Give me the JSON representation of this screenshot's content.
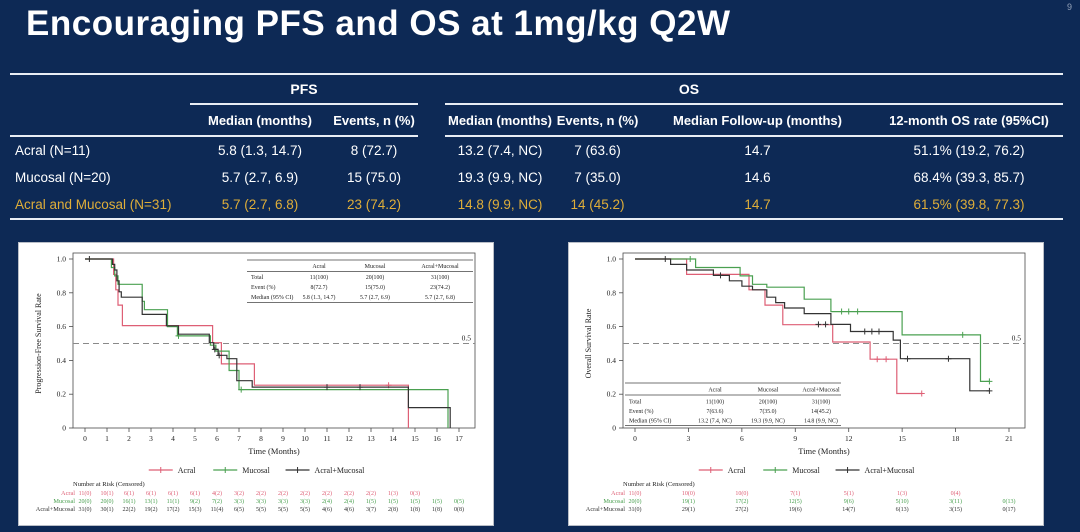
{
  "slide": {
    "page_number": "9",
    "title": "Encouraging PFS and OS at 1mg/kg Q2W"
  },
  "colors": {
    "background": "#0d2955",
    "rule_lines": "#e8edf4",
    "highlight_gold": "#dfae39",
    "series_acral": "#de5f75",
    "series_mucosal": "#4aa050",
    "series_combined": "#333333",
    "reference_line": "#8a8a8a"
  },
  "summary_table": {
    "groups": [
      {
        "label": "PFS",
        "span": 2
      },
      {
        "label": "OS",
        "span": 4
      }
    ],
    "columns": [
      "Median (months)",
      "Events, n (%)",
      "Median (months)",
      "Events, n (%)",
      "Median Follow-up (months)",
      "12-month OS rate (95%CI)"
    ],
    "rows": [
      {
        "label": "Acral (N=11)",
        "highlight": false,
        "values": [
          "5.8 (1.3, 14.7)",
          "8 (72.7)",
          "13.2 (7.4, NC)",
          "7 (63.6)",
          "14.7",
          "51.1% (19.2, 76.2)"
        ]
      },
      {
        "label": "Mucosal (N=20)",
        "highlight": false,
        "values": [
          "5.7 (2.7, 6.9)",
          "15 (75.0)",
          "19.3 (9.9, NC)",
          "7 (35.0)",
          "14.6",
          "68.4% (39.3, 85.7)"
        ]
      },
      {
        "label": "Acral and Mucosal (N=31)",
        "highlight": true,
        "values": [
          "5.7 (2.7, 6.8)",
          "23 (74.2)",
          "14.8 (9.9, NC)",
          "14 (45.2)",
          "14.7",
          "61.5% (39.8, 77.3)"
        ]
      }
    ]
  },
  "chart_data": [
    {
      "type": "line",
      "subtype": "kaplan-meier-step",
      "name": "pfs-km-chart",
      "title": "",
      "ylabel": "Progression-Free Survival Rate",
      "xlabel": "Time (Months)",
      "xlim": [
        0,
        17
      ],
      "ylim": [
        0,
        1.0
      ],
      "xticks": [
        0,
        1,
        2,
        3,
        4,
        5,
        6,
        7,
        8,
        9,
        10,
        11,
        12,
        13,
        14,
        15,
        16,
        17
      ],
      "yticks": [
        0,
        0.2,
        0.4,
        0.6,
        0.8,
        1.0
      ],
      "grid": false,
      "legend_position": "bottom",
      "reference_line": {
        "y": 0.5,
        "label": "0.5"
      },
      "series": [
        {
          "name": "Acral",
          "color": "#de5f75",
          "start": [
            0,
            1.0
          ],
          "drops": [
            [
              1.3,
              0.909
            ],
            [
              1.4,
              0.818
            ],
            [
              1.5,
              0.727
            ],
            [
              1.7,
              0.606
            ],
            [
              5.8,
              0.505
            ],
            [
              6.2,
              0.379
            ],
            [
              7.7,
              0.253
            ],
            [
              14.7,
              0.0
            ]
          ],
          "end_x": null,
          "censors": [
            [
              13.8,
              0.253
            ]
          ]
        },
        {
          "name": "Mucosal",
          "color": "#4aa050",
          "start": [
            0,
            1.0
          ],
          "drops": [
            [
              1.2,
              0.95
            ],
            [
              1.35,
              0.9
            ],
            [
              1.5,
              0.85
            ],
            [
              2.6,
              0.75
            ],
            [
              2.7,
              0.7
            ],
            [
              3.75,
              0.6
            ],
            [
              4.2,
              0.545
            ],
            [
              5.7,
              0.49
            ],
            [
              5.95,
              0.455
            ],
            [
              6.55,
              0.34
            ],
            [
              7.0,
              0.227
            ],
            [
              16.5,
              0.0
            ]
          ],
          "end_x": null,
          "censors": [
            [
              4.25,
              0.545
            ],
            [
              7.1,
              0.227
            ]
          ]
        },
        {
          "name": "Acral+Mucosal",
          "color": "#333333",
          "start": [
            0,
            1.0
          ],
          "drops": [
            [
              1.25,
              0.968
            ],
            [
              1.35,
              0.935
            ],
            [
              1.45,
              0.871
            ],
            [
              1.55,
              0.806
            ],
            [
              1.65,
              0.774
            ],
            [
              2.6,
              0.672
            ],
            [
              3.7,
              0.605
            ],
            [
              4.25,
              0.555
            ],
            [
              5.65,
              0.505
            ],
            [
              5.85,
              0.465
            ],
            [
              6.05,
              0.43
            ],
            [
              6.45,
              0.41
            ],
            [
              6.9,
              0.28
            ],
            [
              7.6,
              0.242
            ],
            [
              14.7,
              0.121
            ],
            [
              16.6,
              0.0
            ]
          ],
          "end_x": null,
          "censors": [
            [
              0.2,
              1.0
            ],
            [
              5.9,
              0.465
            ],
            [
              6.1,
              0.43
            ],
            [
              11.0,
              0.242
            ],
            [
              12.5,
              0.242
            ]
          ]
        }
      ],
      "inset_table": {
        "position": "top-right",
        "headers": [
          "",
          "Acral",
          "Mucosal",
          "Acral+Mucosal"
        ],
        "rows": [
          [
            "Total",
            "11(100)",
            "20(100)",
            "31(100)"
          ],
          [
            "Event (%)",
            "8(72.7)",
            "15(75.0)",
            "23(74.2)"
          ],
          [
            "Median (95% CI)",
            "5.8 (1.3, 14.7)",
            "5.7 (2.7, 6.9)",
            "5.7 (2.7, 6.8)"
          ]
        ]
      },
      "risk_table": {
        "title": "Number at Risk (Censored)",
        "rows": [
          {
            "label": "Acral",
            "values": [
              "11(0)",
              "10(1)",
              "6(1)",
              "6(1)",
              "6(1)",
              "6(1)",
              "4(2)",
              "3(2)",
              "2(2)",
              "2(2)",
              "2(2)",
              "2(2)",
              "2(2)",
              "2(2)",
              "1(3)",
              "0(3)",
              "",
              ""
            ]
          },
          {
            "label": "Mucosal",
            "values": [
              "20(0)",
              "20(0)",
              "16(1)",
              "13(1)",
              "11(1)",
              "9(2)",
              "7(2)",
              "3(3)",
              "3(3)",
              "3(3)",
              "3(3)",
              "2(4)",
              "2(4)",
              "1(5)",
              "1(5)",
              "1(5)",
              "1(5)",
              "0(5)"
            ]
          },
          {
            "label": "Acral+Mucosal",
            "values": [
              "31(0)",
              "30(1)",
              "22(2)",
              "19(2)",
              "17(2)",
              "15(3)",
              "11(4)",
              "6(5)",
              "5(5)",
              "5(5)",
              "5(5)",
              "4(6)",
              "4(6)",
              "3(7)",
              "2(8)",
              "1(8)",
              "1(8)",
              "0(8)"
            ]
          }
        ]
      }
    },
    {
      "type": "line",
      "subtype": "kaplan-meier-step",
      "name": "os-km-chart",
      "title": "",
      "ylabel": "Overall Survival Rate",
      "xlabel": "Time (Months)",
      "xlim": [
        0,
        21
      ],
      "ylim": [
        0,
        1.0
      ],
      "xticks": [
        0,
        3,
        6,
        9,
        12,
        15,
        18,
        21
      ],
      "yticks": [
        0,
        0.2,
        0.4,
        0.6,
        0.8,
        1.0
      ],
      "grid": false,
      "legend_position": "bottom",
      "reference_line": {
        "y": 0.5,
        "label": "0.5"
      },
      "series": [
        {
          "name": "Acral",
          "color": "#de5f75",
          "start": [
            0,
            1.0
          ],
          "drops": [
            [
              2.9,
              0.909
            ],
            [
              6.4,
              0.818
            ],
            [
              7.3,
              0.727
            ],
            [
              8.3,
              0.611
            ],
            [
              11.1,
              0.509
            ],
            [
              13.2,
              0.407
            ],
            [
              14.7,
              0.204
            ]
          ],
          "end_x": 16.1,
          "censors": [
            [
              13.6,
              0.407
            ],
            [
              14.1,
              0.407
            ],
            [
              16.1,
              0.204
            ]
          ]
        },
        {
          "name": "Mucosal",
          "color": "#4aa050",
          "start": [
            0,
            1.0
          ],
          "drops": [
            [
              3.4,
              0.95
            ],
            [
              5.9,
              0.9
            ],
            [
              6.6,
              0.85
            ],
            [
              7.4,
              0.833
            ],
            [
              9.5,
              0.762
            ],
            [
              11.0,
              0.689
            ],
            [
              15.0,
              0.551
            ],
            [
              19.4,
              0.276
            ]
          ],
          "end_x": 19.9,
          "censors": [
            [
              3.1,
              1.0
            ],
            [
              11.6,
              0.689
            ],
            [
              12.0,
              0.689
            ],
            [
              12.5,
              0.689
            ],
            [
              18.4,
              0.551
            ],
            [
              19.9,
              0.276
            ]
          ]
        },
        {
          "name": "Acral+Mucosal",
          "color": "#333333",
          "start": [
            0,
            1.0
          ],
          "drops": [
            [
              2.0,
              0.968
            ],
            [
              2.9,
              0.935
            ],
            [
              4.4,
              0.903
            ],
            [
              5.3,
              0.871
            ],
            [
              6.0,
              0.839
            ],
            [
              6.6,
              0.818
            ],
            [
              7.4,
              0.774
            ],
            [
              7.9,
              0.742
            ],
            [
              8.4,
              0.71
            ],
            [
              9.5,
              0.677
            ],
            [
              11.0,
              0.613
            ],
            [
              12.1,
              0.571
            ],
            [
              14.5,
              0.52
            ],
            [
              14.9,
              0.41
            ],
            [
              18.8,
              0.22
            ]
          ],
          "end_x": 19.9,
          "censors": [
            [
              1.7,
              1.0
            ],
            [
              4.8,
              0.903
            ],
            [
              10.3,
              0.613
            ],
            [
              10.7,
              0.613
            ],
            [
              12.9,
              0.571
            ],
            [
              13.3,
              0.571
            ],
            [
              13.7,
              0.571
            ],
            [
              15.3,
              0.41
            ],
            [
              17.6,
              0.41
            ],
            [
              19.9,
              0.22
            ]
          ]
        }
      ],
      "inset_table": {
        "position": "bottom-left",
        "headers": [
          "",
          "Acral",
          "Mucosal",
          "Acral+Mucosal"
        ],
        "rows": [
          [
            "Total",
            "11(100)",
            "20(100)",
            "31(100)"
          ],
          [
            "Event (%)",
            "7(63.6)",
            "7(35.0)",
            "14(45.2)"
          ],
          [
            "Median (95% CI)",
            "13.2 (7.4, NC)",
            "19.3 (9.9, NC)",
            "14.8 (9.9, NC)"
          ]
        ]
      },
      "risk_table": {
        "title": "Number at Risk (Censored)",
        "rows": [
          {
            "label": "Acral",
            "values": [
              "11(0)",
              "10(0)",
              "10(0)",
              "7(1)",
              "5(1)",
              "1(3)",
              "0(4)",
              ""
            ]
          },
          {
            "label": "Mucosal",
            "values": [
              "20(0)",
              "19(1)",
              "17(2)",
              "12(5)",
              "9(6)",
              "5(10)",
              "3(11)",
              "0(13)"
            ]
          },
          {
            "label": "Acral+Mucosal",
            "values": [
              "31(0)",
              "29(1)",
              "27(2)",
              "19(6)",
              "14(7)",
              "6(13)",
              "3(15)",
              "0(17)"
            ]
          }
        ]
      }
    }
  ]
}
